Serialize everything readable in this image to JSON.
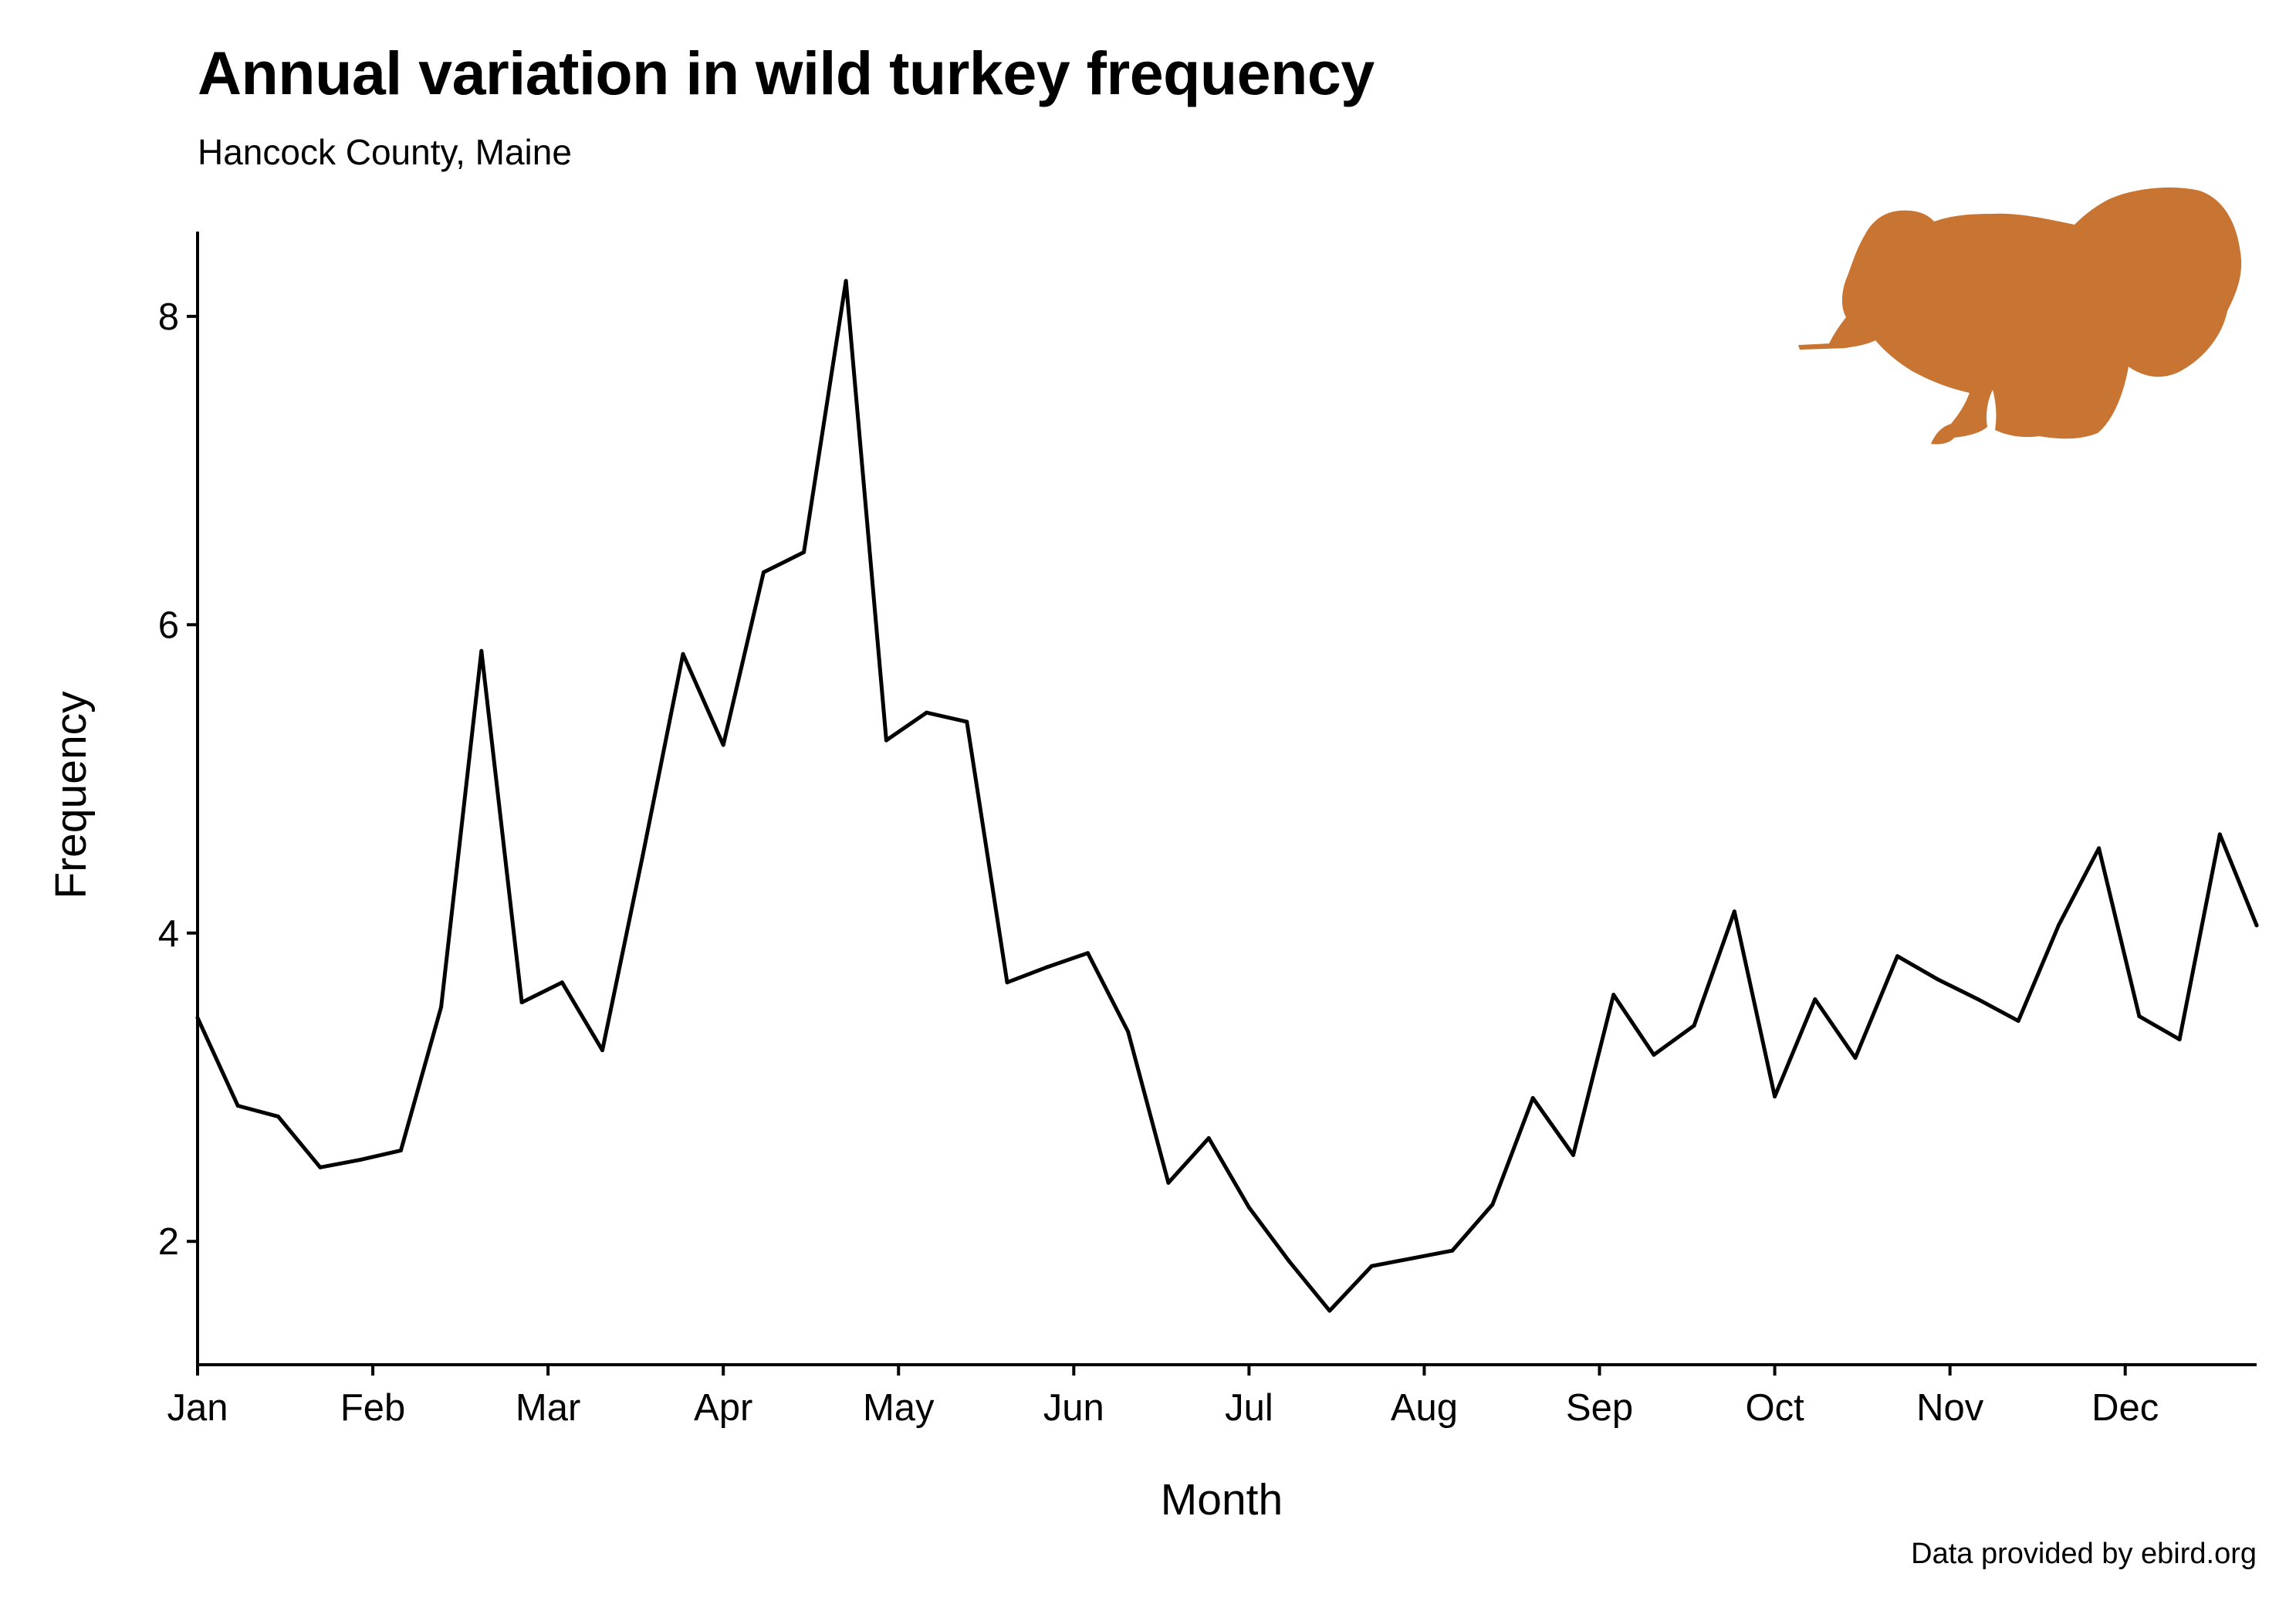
{
  "title": "Annual variation in wild turkey frequency",
  "subtitle": "Hancock County, Maine",
  "caption": "Data provided by ebird.org",
  "colors": {
    "line": "#000000",
    "turkey": "#c87533",
    "axis": "#000000"
  },
  "icons": {
    "silhouette": "turkey-icon"
  },
  "chart_data": {
    "type": "line",
    "title": "Annual variation in wild turkey frequency",
    "subtitle": "Hancock County, Maine",
    "xlabel": "Month",
    "ylabel": "Frequency",
    "x_ticks": [
      "Jan",
      "Feb",
      "Mar",
      "Apr",
      "May",
      "Jun",
      "Jul",
      "Aug",
      "Sep",
      "Oct",
      "Nov",
      "Dec"
    ],
    "y_ticks": [
      2,
      4,
      6,
      8
    ],
    "xlim": [
      1,
      12.75
    ],
    "ylim": [
      1.2,
      8.55
    ],
    "grid": false,
    "legend": "none",
    "series": [
      {
        "x": [
          1.0,
          1.23,
          1.46,
          1.7,
          1.93,
          2.16,
          2.39,
          2.62,
          2.85,
          3.08,
          3.31,
          3.54,
          3.77,
          4.0,
          4.23,
          4.46,
          4.7,
          4.93,
          5.16,
          5.39,
          5.62,
          5.85,
          6.08,
          6.31,
          6.54,
          6.77,
          7.0,
          7.23,
          7.46,
          7.7,
          7.93,
          8.16,
          8.39,
          8.62,
          8.85,
          9.08,
          9.31,
          9.54,
          9.77,
          10.0,
          10.23,
          10.46,
          10.7,
          10.93,
          11.16,
          11.39,
          11.62,
          11.85,
          12.08,
          12.31,
          12.54,
          12.75
        ],
        "y": [
          3.45,
          2.88,
          2.81,
          2.48,
          2.53,
          2.59,
          3.52,
          5.83,
          3.55,
          3.68,
          3.24,
          4.5,
          5.81,
          5.22,
          6.34,
          6.47,
          8.23,
          5.25,
          5.43,
          5.37,
          3.68,
          3.78,
          3.87,
          3.36,
          2.38,
          2.67,
          2.22,
          1.87,
          1.55,
          1.84,
          1.89,
          1.94,
          2.24,
          2.93,
          2.56,
          3.6,
          3.21,
          3.4,
          4.14,
          2.94,
          3.57,
          3.19,
          3.85,
          3.7,
          3.57,
          3.43,
          4.05,
          4.55,
          3.46,
          3.31,
          4.64,
          4.05
        ]
      }
    ]
  }
}
